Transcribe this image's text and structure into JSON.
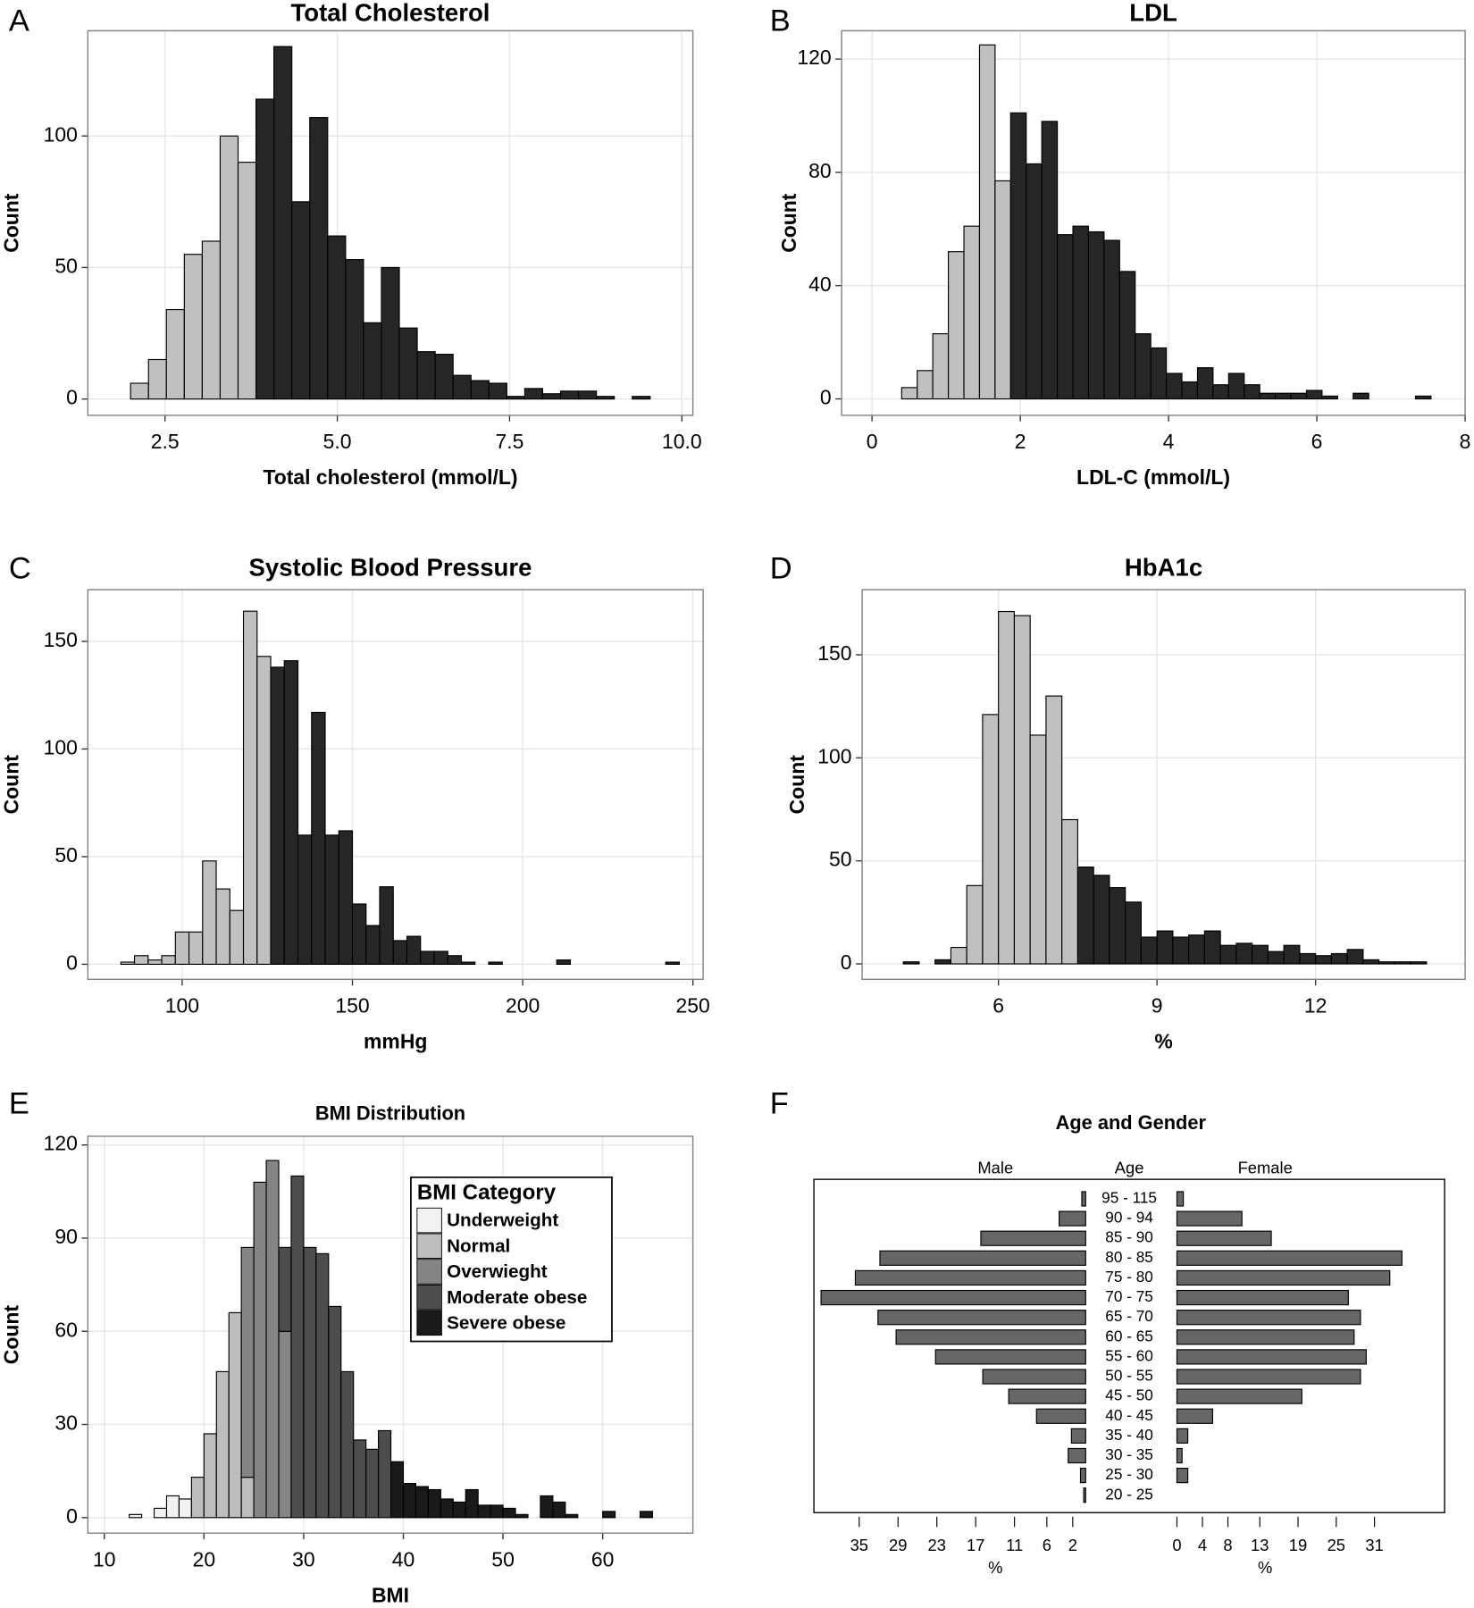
{
  "chart_data": [
    {
      "panel": "A",
      "type": "histogram",
      "title": "Total Cholesterol",
      "xlabel": "Total cholesterol (mmol/L)",
      "ylabel": "Count",
      "xlim": [
        1.38,
        10.16
      ],
      "ylim": [
        -6.2,
        140
      ],
      "xticks": [
        2.5,
        {
          "value": 5,
          "label": "5.0"
        },
        7.5,
        {
          "value": 10,
          "label": "10.0"
        }
      ],
      "yticks": [
        0,
        50,
        100
      ],
      "grid": true,
      "series": [
        {
          "color": "#c0c0c0",
          "bins": [
            2.0,
            2.26,
            2.52,
            2.78,
            3.04,
            3.3,
            3.56,
            3.82
          ],
          "values": [
            6,
            15,
            34,
            55,
            60,
            100,
            90
          ]
        },
        {
          "color": "#262626",
          "bins": [
            3.82,
            4.08,
            4.34,
            4.6,
            4.86,
            5.12,
            5.38,
            5.64,
            5.9,
            6.16,
            6.42,
            6.68,
            6.94,
            7.2,
            7.46,
            7.72,
            7.98,
            8.24,
            8.5,
            8.76,
            9.02,
            9.28,
            9.54
          ],
          "values": [
            114,
            134,
            75,
            107,
            62,
            53,
            29,
            50,
            27,
            18,
            17,
            9,
            7,
            6,
            1,
            4,
            2,
            3,
            3,
            1,
            0,
            1
          ]
        }
      ]
    },
    {
      "panel": "B",
      "type": "histogram",
      "title": "LDL",
      "xlabel": "LDL-C (mmol/L)",
      "ylabel": "Count",
      "xlim": [
        -0.41,
        8.0
      ],
      "ylim": [
        -5.8,
        130
      ],
      "xticks": [
        0,
        2,
        4,
        6,
        8
      ],
      "yticks": [
        0,
        40,
        80,
        120
      ],
      "grid": true,
      "series": [
        {
          "color": "#c0c0c0",
          "bins": [
            0.4,
            0.61,
            0.82,
            1.03,
            1.24,
            1.45,
            1.66,
            1.87
          ],
          "values": [
            4,
            10,
            23,
            52,
            61,
            125,
            77
          ]
        },
        {
          "color": "#262626",
          "bins": [
            1.87,
            2.08,
            2.29,
            2.5,
            2.71,
            2.92,
            3.13,
            3.34,
            3.55,
            3.76,
            3.97,
            4.18,
            4.39,
            4.6,
            4.81,
            5.02,
            5.23,
            5.44,
            5.65,
            5.86,
            6.07,
            6.28,
            6.49,
            6.7,
            6.91,
            7.12,
            7.33,
            7.54
          ],
          "values": [
            101,
            83,
            98,
            58,
            61,
            59,
            56,
            45,
            23,
            18,
            9,
            6,
            11,
            5,
            9,
            5,
            2,
            2,
            2,
            3,
            1,
            0,
            2,
            0,
            0,
            0,
            1
          ]
        }
      ]
    },
    {
      "panel": "C",
      "type": "histogram",
      "title": "Systolic Blood Pressure",
      "xlabel": "mmHg",
      "ylabel": "Count",
      "xlim": [
        72.3,
        253
      ],
      "ylim": [
        -7,
        174
      ],
      "xticks": [
        100,
        150,
        200,
        250
      ],
      "yticks": [
        0,
        50,
        100,
        150
      ],
      "grid": true,
      "series": [
        {
          "color": "#c0c0c0",
          "bins": [
            82,
            86,
            90,
            94,
            98,
            102,
            106,
            110,
            114,
            118,
            122,
            126
          ],
          "values": [
            1,
            4,
            2,
            4,
            15,
            15,
            48,
            35,
            25,
            164,
            143
          ]
        },
        {
          "color": "#262626",
          "bins": [
            126,
            130,
            134,
            138,
            142,
            146,
            150,
            154,
            158,
            162,
            166,
            170,
            174,
            178,
            182,
            186,
            190,
            194,
            198,
            202,
            206,
            210,
            214,
            218,
            222,
            226,
            230,
            234,
            238,
            242,
            246
          ],
          "values": [
            138,
            141,
            60,
            117,
            60,
            62,
            28,
            18,
            36,
            11,
            13,
            6,
            6,
            4,
            1,
            0,
            1,
            0,
            0,
            0,
            0,
            2,
            0,
            0,
            0,
            0,
            0,
            0,
            0,
            1
          ]
        }
      ]
    },
    {
      "panel": "D",
      "type": "histogram",
      "title": "HbA1c",
      "xlabel": "%",
      "ylabel": "Count",
      "xlim": [
        3.42,
        14.83
      ],
      "ylim": [
        -7.5,
        181.6
      ],
      "xticks": [
        6,
        9,
        12
      ],
      "yticks": [
        0,
        50,
        100,
        150
      ],
      "grid": true,
      "series": [
        {
          "color": "#262626",
          "bins": [
            4.2,
            4.5,
            4.8,
            5.1
          ],
          "values": [
            1,
            0,
            2
          ]
        },
        {
          "color": "#c0c0c0",
          "bins": [
            5.1,
            5.4,
            5.7,
            6.0,
            6.3,
            6.6,
            6.9,
            7.2,
            7.5
          ],
          "values": [
            8,
            38,
            121,
            171,
            169,
            111,
            130,
            70
          ]
        },
        {
          "color": "#262626",
          "bins": [
            7.5,
            7.8,
            8.1,
            8.4,
            8.7,
            9.0,
            9.3,
            9.6,
            9.9,
            10.2,
            10.5,
            10.8,
            11.1,
            11.4,
            11.7,
            12.0,
            12.3,
            12.6,
            12.9,
            13.2,
            13.5,
            13.8,
            14.1
          ],
          "values": [
            47,
            43,
            37,
            30,
            13,
            16,
            13,
            14,
            16,
            9,
            10,
            9,
            6,
            9,
            5,
            4,
            5,
            7,
            2,
            1,
            1,
            1
          ]
        }
      ]
    },
    {
      "panel": "E",
      "type": "histogram",
      "stacked": true,
      "title": "BMI Distribution",
      "xlabel": "BMI",
      "ylabel": "Count",
      "xlim": [
        8.35,
        69.05
      ],
      "ylim": [
        -5,
        122.8
      ],
      "xticks": [
        10,
        20,
        30,
        40,
        50,
        60
      ],
      "yticks": [
        0,
        30,
        60,
        90,
        120
      ],
      "grid": true,
      "legend": "top-right",
      "legend_title": "BMI Category",
      "bins": [
        12.5,
        13.75,
        15,
        16.25,
        17.5,
        18.75,
        20,
        21.25,
        22.5,
        23.75,
        25,
        26.25,
        27.5,
        28.75,
        30,
        31.25,
        32.5,
        33.75,
        35,
        36.25,
        37.5,
        38.75,
        40,
        41.25,
        42.5,
        43.75,
        45,
        46.25,
        47.5,
        48.75,
        50,
        51.25,
        52.5,
        53.75,
        55,
        56.25,
        57.5,
        58.75,
        60,
        61.25,
        62.5,
        63.75,
        65,
        66.25
      ],
      "series": [
        {
          "name": "Underweight",
          "color": "#f2f2f2",
          "values": [
            1,
            0,
            3,
            7,
            6,
            0,
            0,
            0,
            0,
            0,
            0,
            0,
            0,
            0,
            0,
            0,
            0,
            0,
            0,
            0,
            0,
            0,
            0,
            0,
            0,
            0,
            0,
            0,
            0,
            0,
            0,
            0,
            0,
            0,
            0,
            0,
            0,
            0,
            0,
            0,
            0,
            0,
            0
          ]
        },
        {
          "name": "Normal",
          "color": "#bdbdbd",
          "values": [
            0,
            0,
            0,
            0,
            0,
            13,
            27,
            47,
            66,
            13,
            0,
            0,
            0,
            0,
            0,
            0,
            0,
            0,
            0,
            0,
            0,
            0,
            0,
            0,
            0,
            0,
            0,
            0,
            0,
            0,
            0,
            0,
            0,
            0,
            0,
            0,
            0,
            0,
            0,
            0,
            0,
            0,
            0
          ]
        },
        {
          "name": "Overwieght",
          "color": "#858585",
          "values": [
            0,
            0,
            0,
            0,
            0,
            0,
            0,
            0,
            0,
            74,
            108,
            115,
            60,
            0,
            0,
            0,
            0,
            0,
            0,
            0,
            0,
            0,
            0,
            0,
            0,
            0,
            0,
            0,
            0,
            0,
            0,
            0,
            0,
            0,
            0,
            0,
            0,
            0,
            0,
            0,
            0,
            0,
            0
          ]
        },
        {
          "name": "Moderate obese",
          "color": "#4d4d4d",
          "values": [
            0,
            0,
            0,
            0,
            0,
            0,
            0,
            0,
            0,
            0,
            0,
            0,
            27,
            110,
            87,
            85,
            68,
            47,
            25,
            22,
            28,
            0,
            0,
            0,
            0,
            0,
            0,
            0,
            0,
            0,
            0,
            0,
            0,
            0,
            0,
            0,
            0,
            0,
            0,
            0,
            0,
            0,
            0
          ]
        },
        {
          "name": "Severe obese",
          "color": "#1a1a1a",
          "values": [
            0,
            0,
            0,
            0,
            0,
            0,
            0,
            0,
            0,
            0,
            0,
            0,
            0,
            0,
            0,
            0,
            0,
            0,
            0,
            0,
            0,
            18,
            11,
            10,
            9,
            6,
            5,
            9,
            4,
            4,
            3,
            1,
            0,
            7,
            5,
            1,
            0,
            0,
            2,
            0,
            0,
            2,
            0
          ]
        }
      ]
    },
    {
      "panel": "F",
      "type": "pyramid",
      "title": "Age and Gender",
      "category_label": "Age",
      "xlabel": "%",
      "xlim": [
        0,
        42
      ],
      "categories": [
        "95 - 115",
        "90 - 94",
        "85 - 90",
        "80 - 85",
        "75 - 80",
        "70 - 75",
        "65 - 70",
        "60 - 65",
        "55 - 60",
        "50 - 55",
        "45 - 50",
        "40 - 45",
        "35 - 40",
        "30 - 35",
        "25 - 30",
        "20 - 25"
      ],
      "series": [
        {
          "name": "Male",
          "color": "#666666",
          "ticks": [
            35,
            29,
            23,
            17,
            11,
            6,
            2
          ],
          "values": [
            0.6,
            4.1,
            16.2,
            31.8,
            35.6,
            40.9,
            32.1,
            29.3,
            23.2,
            15.9,
            11.9,
            7.6,
            2.2,
            2.7,
            0.8,
            0.3
          ]
        },
        {
          "name": "Female",
          "color": "#666666",
          "ticks": [
            0,
            4,
            8,
            13,
            19,
            25,
            31
          ],
          "values": [
            1.0,
            10.2,
            14.8,
            35.3,
            33.4,
            26.9,
            28.8,
            27.8,
            29.7,
            28.8,
            19.6,
            5.6,
            1.7,
            0.8,
            1.7,
            0
          ]
        }
      ]
    }
  ]
}
